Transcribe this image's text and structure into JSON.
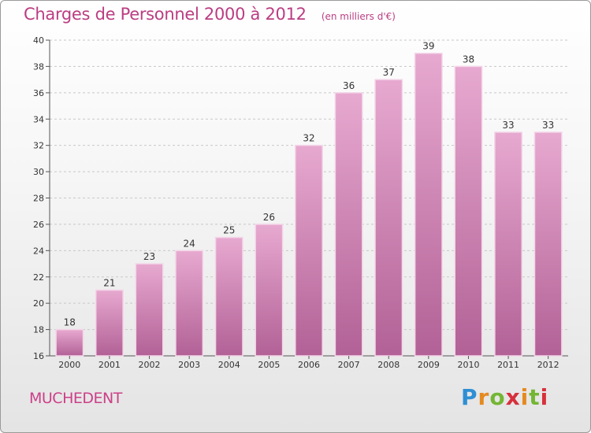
{
  "header": {
    "title": "Charges de Personnel 2000 à 2012",
    "subtitle": "(en milliers d'€)"
  },
  "footer": {
    "commune": "MUCHEDENT",
    "logo_parts": [
      "P",
      "r",
      "o",
      "x",
      "i",
      "t",
      "i"
    ]
  },
  "colors": {
    "accent": "#bb3d82",
    "bar_top": "#e7a9d0",
    "bar_bottom": "#b26196"
  },
  "chart_data": {
    "type": "bar",
    "title": "Charges de Personnel 2000 à 2012",
    "subtitle": "(en milliers d'€)",
    "categories": [
      "2000",
      "2001",
      "2002",
      "2003",
      "2004",
      "2005",
      "2006",
      "2007",
      "2008",
      "2009",
      "2010",
      "2011",
      "2012"
    ],
    "values": [
      18,
      21,
      23,
      24,
      25,
      26,
      32,
      36,
      37,
      39,
      38,
      33,
      33
    ],
    "ylim": [
      16,
      40
    ],
    "yticks": [
      "16",
      "18",
      "20",
      "22",
      "24",
      "26",
      "28",
      "30",
      "32",
      "34",
      "36",
      "38",
      "40"
    ],
    "grid": true
  }
}
